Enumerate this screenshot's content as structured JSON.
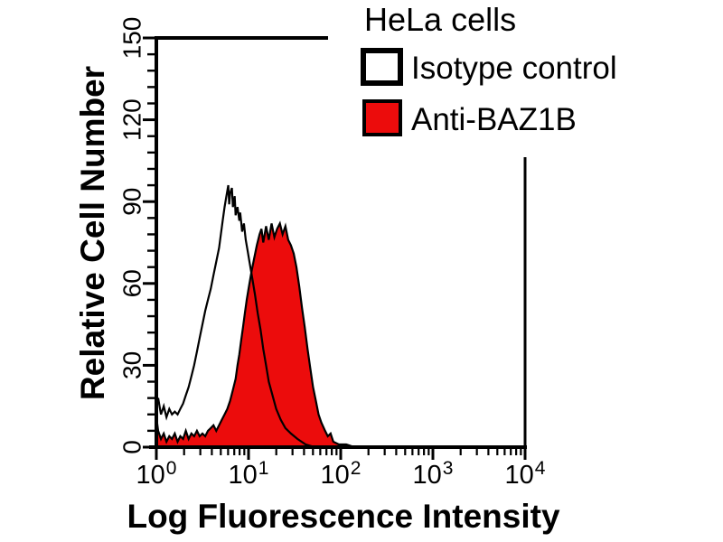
{
  "figure": {
    "background": "#ffffff",
    "axis_color": "#000000",
    "text_color": "#000000"
  },
  "legend": {
    "title": "HeLa cells",
    "items": [
      {
        "label": "Isotype control",
        "swatch_color": "#ffffff",
        "swatch_border": "#000000"
      },
      {
        "label": "Anti-BAZ1B",
        "swatch_color": "#ec0c0c",
        "swatch_border": "#000000"
      }
    ]
  },
  "chart_data": {
    "type": "area",
    "subtype": "flow-cytometry-histogram-overlay",
    "title": "HeLa cells",
    "xlabel": "Log Fluorescence Intensity",
    "ylabel": "Relative Cell Number",
    "x_scale": "log10",
    "xlim": [
      1,
      10000
    ],
    "ylim": [
      0,
      150
    ],
    "grid": false,
    "legend_position": "top-right",
    "y_ticks": [
      0,
      30,
      60,
      90,
      120,
      150
    ],
    "y_minor_tick_step": 6,
    "x_tick_exponents": [
      0,
      1,
      2,
      3,
      4
    ],
    "x_minor_ticks_per_decade": [
      2,
      3,
      4,
      5,
      6,
      7,
      8,
      9
    ],
    "series": [
      {
        "name": "Anti-BAZ1B",
        "style": "filled",
        "fill": "#ec0c0c",
        "stroke": "#000000",
        "peak": {
          "x_log10": 1.25,
          "y": 82
        },
        "points_log10x_y": [
          [
            0.0,
            11
          ],
          [
            0.02,
            6
          ],
          [
            0.05,
            3
          ],
          [
            0.08,
            5
          ],
          [
            0.11,
            2
          ],
          [
            0.14,
            4
          ],
          [
            0.17,
            3
          ],
          [
            0.2,
            5
          ],
          [
            0.23,
            2
          ],
          [
            0.26,
            4
          ],
          [
            0.29,
            3
          ],
          [
            0.32,
            6
          ],
          [
            0.35,
            3
          ],
          [
            0.38,
            5
          ],
          [
            0.41,
            4
          ],
          [
            0.44,
            6
          ],
          [
            0.47,
            4
          ],
          [
            0.5,
            5
          ],
          [
            0.53,
            4
          ],
          [
            0.56,
            6
          ],
          [
            0.59,
            7
          ],
          [
            0.62,
            8
          ],
          [
            0.65,
            6
          ],
          [
            0.68,
            8
          ],
          [
            0.71,
            10
          ],
          [
            0.74,
            12
          ],
          [
            0.77,
            14
          ],
          [
            0.8,
            17
          ],
          [
            0.83,
            21
          ],
          [
            0.86,
            25
          ],
          [
            0.88,
            30
          ],
          [
            0.9,
            34
          ],
          [
            0.92,
            39
          ],
          [
            0.94,
            44
          ],
          [
            0.96,
            49
          ],
          [
            0.98,
            54
          ],
          [
            1.0,
            58
          ],
          [
            1.03,
            64
          ],
          [
            1.06,
            69
          ],
          [
            1.09,
            74
          ],
          [
            1.12,
            78
          ],
          [
            1.14,
            80
          ],
          [
            1.16,
            75
          ],
          [
            1.19,
            81
          ],
          [
            1.22,
            76
          ],
          [
            1.25,
            82
          ],
          [
            1.28,
            77
          ],
          [
            1.31,
            80
          ],
          [
            1.34,
            82
          ],
          [
            1.37,
            78
          ],
          [
            1.4,
            81
          ],
          [
            1.43,
            76
          ],
          [
            1.46,
            74
          ],
          [
            1.49,
            71
          ],
          [
            1.52,
            66
          ],
          [
            1.55,
            59
          ],
          [
            1.58,
            51
          ],
          [
            1.61,
            44
          ],
          [
            1.64,
            36
          ],
          [
            1.67,
            29
          ],
          [
            1.7,
            22
          ],
          [
            1.73,
            17
          ],
          [
            1.76,
            12
          ],
          [
            1.79,
            9
          ],
          [
            1.83,
            6
          ],
          [
            1.86,
            4
          ],
          [
            1.89,
            5
          ],
          [
            1.92,
            2
          ],
          [
            1.98,
            1
          ],
          [
            2.06,
            1
          ],
          [
            2.15,
            0
          ]
        ]
      },
      {
        "name": "Isotype control",
        "style": "open",
        "fill": "none",
        "stroke": "#000000",
        "peak": {
          "x_log10": 0.78,
          "y": 96
        },
        "points_log10x_y": [
          [
            0.0,
            15
          ],
          [
            0.02,
            18
          ],
          [
            0.05,
            12
          ],
          [
            0.08,
            15
          ],
          [
            0.11,
            11
          ],
          [
            0.14,
            14
          ],
          [
            0.17,
            12
          ],
          [
            0.2,
            13
          ],
          [
            0.23,
            12
          ],
          [
            0.26,
            14
          ],
          [
            0.29,
            16
          ],
          [
            0.32,
            19
          ],
          [
            0.35,
            22
          ],
          [
            0.38,
            26
          ],
          [
            0.41,
            30
          ],
          [
            0.44,
            35
          ],
          [
            0.47,
            40
          ],
          [
            0.5,
            45
          ],
          [
            0.53,
            50
          ],
          [
            0.56,
            54
          ],
          [
            0.59,
            58
          ],
          [
            0.62,
            63
          ],
          [
            0.65,
            68
          ],
          [
            0.68,
            73
          ],
          [
            0.7,
            78
          ],
          [
            0.72,
            83
          ],
          [
            0.74,
            88
          ],
          [
            0.76,
            92
          ],
          [
            0.78,
            96
          ],
          [
            0.79,
            89
          ],
          [
            0.8,
            93
          ],
          [
            0.82,
            95
          ],
          [
            0.83,
            88
          ],
          [
            0.85,
            92
          ],
          [
            0.86,
            85
          ],
          [
            0.88,
            88
          ],
          [
            0.9,
            83
          ],
          [
            0.91,
            86
          ],
          [
            0.93,
            79
          ],
          [
            0.95,
            82
          ],
          [
            0.97,
            76
          ],
          [
            0.99,
            72
          ],
          [
            1.01,
            68
          ],
          [
            1.04,
            62
          ],
          [
            1.07,
            56
          ],
          [
            1.1,
            49
          ],
          [
            1.13,
            43
          ],
          [
            1.16,
            36
          ],
          [
            1.19,
            30
          ],
          [
            1.22,
            24
          ],
          [
            1.26,
            19
          ],
          [
            1.3,
            14
          ],
          [
            1.35,
            10
          ],
          [
            1.4,
            7
          ],
          [
            1.46,
            5
          ],
          [
            1.53,
            3
          ],
          [
            1.62,
            1
          ],
          [
            1.72,
            0
          ]
        ]
      }
    ]
  }
}
